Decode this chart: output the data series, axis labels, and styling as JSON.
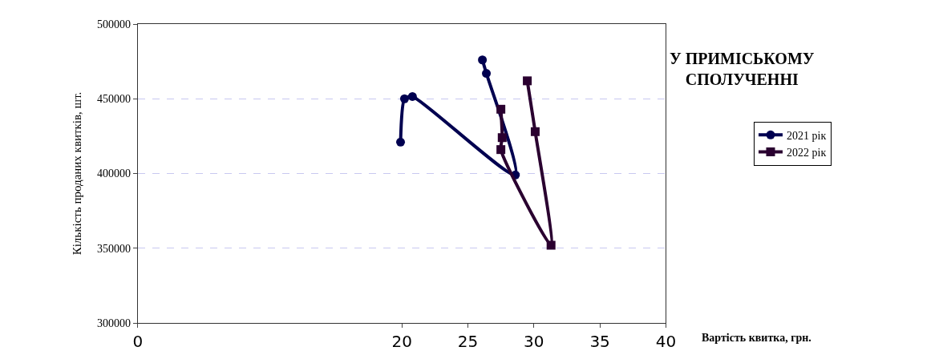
{
  "chart_data": {
    "type": "line",
    "title": "У ПРИМІСЬКОМУ СПОЛУЧЕННІ",
    "xlabel": "Вартість квитка, грн.",
    "ylabel": "Кількість проданих квитків, шт.",
    "series": [
      {
        "name": "2021 рік",
        "color": "#000050",
        "marker": "circle",
        "x": [
          19.9,
          20.2,
          20.8,
          28.6,
          26.4,
          26.1
        ],
        "values": [
          421000,
          450000,
          451500,
          399000,
          467000,
          476000
        ]
      },
      {
        "name": "2022 рік",
        "color": "#2a0030",
        "marker": "square",
        "x": [
          27.5,
          27.6,
          27.5,
          31.3,
          30.1,
          29.5
        ],
        "values": [
          443000,
          424000,
          416000,
          352000,
          428000,
          462000
        ]
      }
    ],
    "xlim": [
      0,
      40
    ],
    "xticks": [
      0,
      20,
      25,
      30,
      35,
      40
    ],
    "ylim": [
      300000,
      500000
    ],
    "yticks": [
      300000,
      350000,
      400000,
      450000,
      500000
    ],
    "grid": "y",
    "legend": "right",
    "line_style": "solid"
  }
}
